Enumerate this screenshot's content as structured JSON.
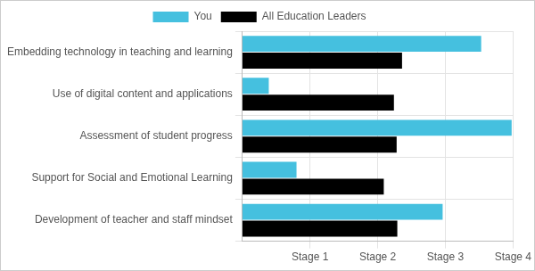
{
  "chart_data": {
    "type": "bar",
    "orientation": "horizontal",
    "categories": [
      "Embedding technology in teaching and learning",
      "Use of digital content and applications",
      "Assessment of student progress",
      "Support for Social and Emotional Learning",
      "Development of teacher and staff mindset"
    ],
    "series": [
      {
        "name": "You",
        "color": "#45c0df",
        "values": [
          3.53,
          0.39,
          3.98,
          0.8,
          2.96
        ]
      },
      {
        "name": "All Education Leaders",
        "color": "#000000",
        "values": [
          2.36,
          2.24,
          2.28,
          2.09,
          2.29
        ]
      }
    ],
    "xlim": [
      0,
      4
    ],
    "xticks": [
      {
        "value": 1,
        "label": "Stage 1"
      },
      {
        "value": 2,
        "label": "Stage 2"
      },
      {
        "value": 3,
        "label": "Stage 3"
      },
      {
        "value": 4,
        "label": "Stage 4"
      }
    ],
    "grid": true,
    "legend": "top"
  }
}
